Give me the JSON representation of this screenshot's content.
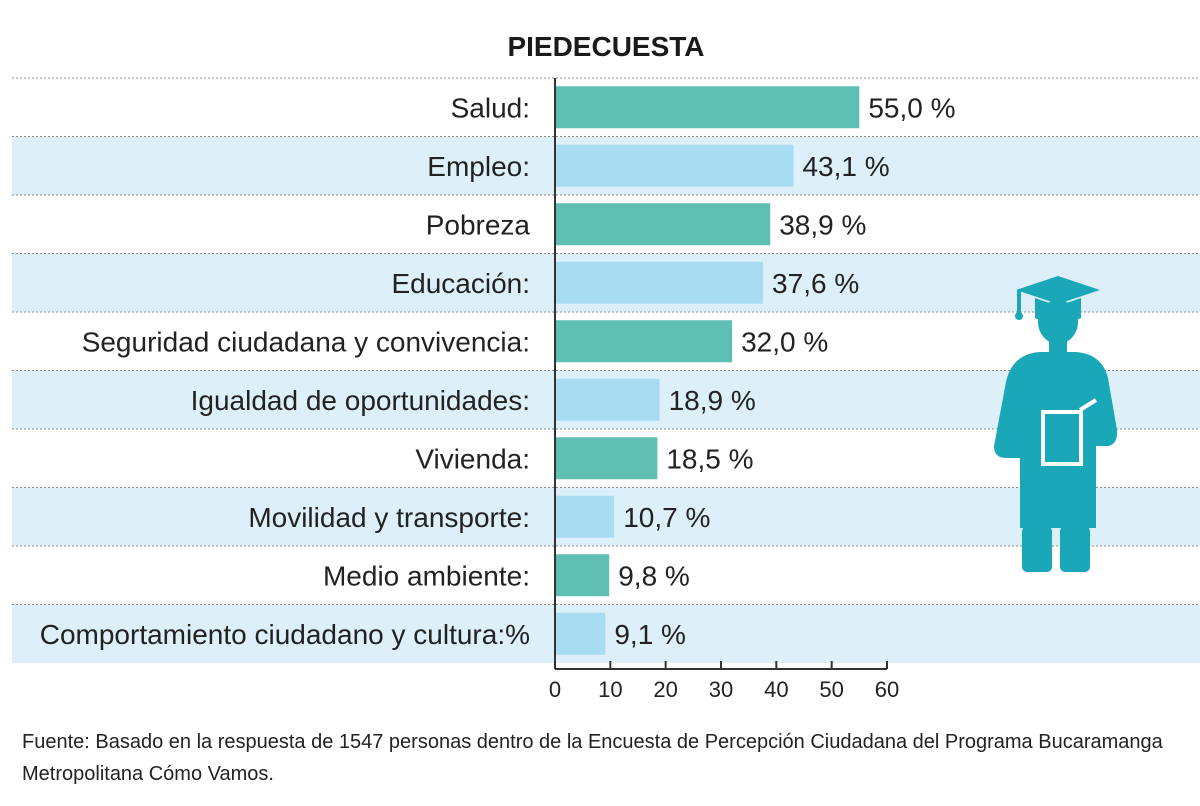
{
  "chart_data": {
    "type": "bar",
    "orientation": "horizontal",
    "title": "PIEDECUESTA",
    "categories": [
      "Salud:",
      "Empleo:",
      "Pobreza",
      "Educación:",
      "Seguridad ciudadana y convivencia:",
      "Igualdad de oportunidades:",
      "Vivienda:",
      "Movilidad y transporte:",
      "Medio ambiente:",
      "Comportamiento ciudadano y cultura:%"
    ],
    "values": [
      55.0,
      43.1,
      38.9,
      37.6,
      32.0,
      18.9,
      18.5,
      10.7,
      9.8,
      9.1
    ],
    "value_labels": [
      "55,0 %",
      "43,1 %",
      "38,9 %",
      "37,6 %",
      "32,0 %",
      "18,9 %",
      "18,5 %",
      "10,7 %",
      "9,8 %",
      "9,1 %"
    ],
    "xlim": [
      0,
      60
    ],
    "xticks": [
      0,
      10,
      20,
      30,
      40,
      50,
      60
    ],
    "xtick_labels": [
      "0",
      "10",
      "20",
      "30",
      "40",
      "50",
      "60"
    ],
    "bar_colors": [
      "#5fbfb3",
      "#a8dcf2"
    ],
    "band_color": "#ddf0fa",
    "xlabel": "",
    "ylabel": ""
  },
  "icon": {
    "name": "graduate-icon",
    "color": "#1aa8b8"
  },
  "source": "Fuente: Basado en la respuesta de 1547 personas dentro de la Encuesta de Percepción Ciudadana del Programa Bucaramanga Metropolitana Cómo Vamos."
}
